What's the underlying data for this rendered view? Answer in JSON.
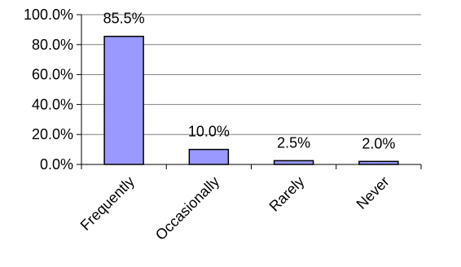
{
  "chart_data": {
    "type": "bar",
    "categories": [
      "Frequently",
      "Occasionally",
      "Rarely",
      "Never"
    ],
    "values": [
      85.5,
      10.0,
      2.5,
      2.0
    ],
    "data_labels": [
      "85.5%",
      "10.0%",
      "2.5%",
      "2.0%"
    ],
    "yticks": [
      "0.0%",
      "20.0%",
      "40.0%",
      "60.0%",
      "80.0%",
      "100.0%"
    ],
    "ylim": [
      0,
      100
    ],
    "grid": true,
    "legend": false,
    "bar_color": "#9999ff",
    "bar_edge": "#000000",
    "grid_color": "#808080"
  }
}
